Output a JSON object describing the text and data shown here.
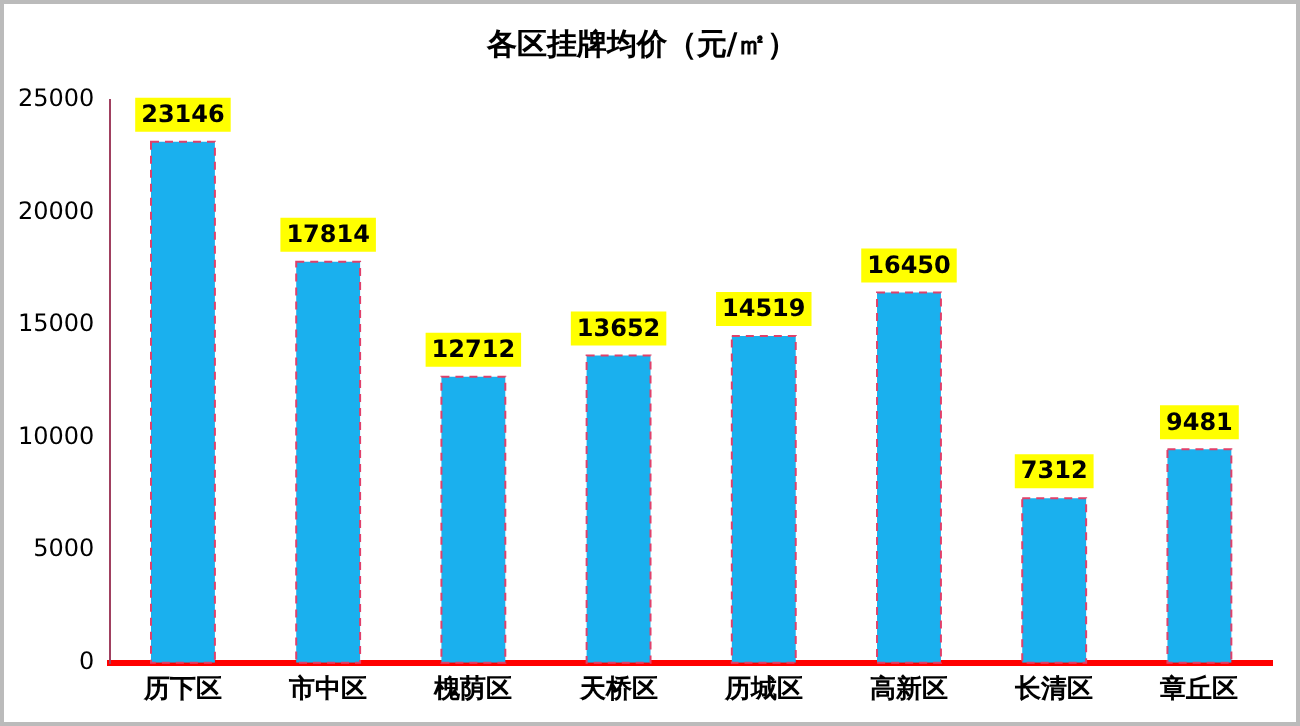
{
  "chart_data": {
    "type": "bar",
    "title": "各区挂牌均价（元/㎡）",
    "categories": [
      "历下区",
      "市中区",
      "槐荫区",
      "天桥区",
      "历城区",
      "高新区",
      "长清区",
      "章丘区"
    ],
    "values": [
      23146,
      17814,
      12712,
      13652,
      14519,
      16450,
      7312,
      9481
    ],
    "color": "#1ab0ee",
    "ylim": [
      0,
      25000
    ],
    "yticks": [
      0,
      5000,
      10000,
      15000,
      20000,
      25000
    ],
    "grid": false,
    "legend": false,
    "data_labels": true
  }
}
